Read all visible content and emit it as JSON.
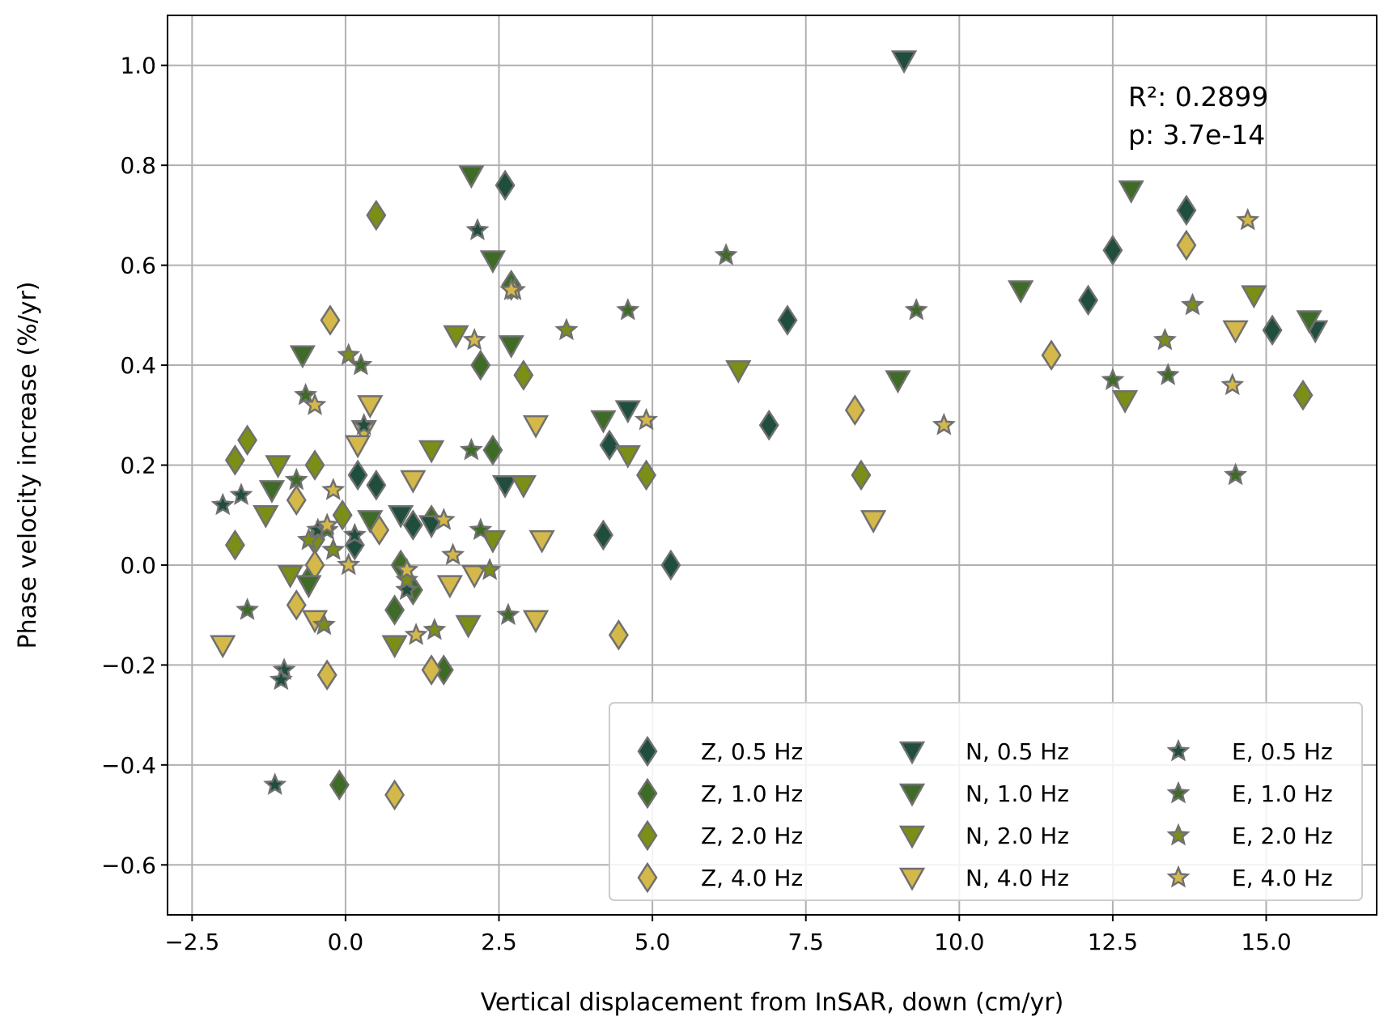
{
  "chart_data": {
    "type": "scatter",
    "xlabel": "Vertical displacement from InSAR, down (cm/yr)",
    "ylabel": "Phase velocity increase (%/yr)",
    "xlim": [
      -2.9,
      16.8
    ],
    "ylim": [
      -0.7,
      1.1
    ],
    "x_ticks": [
      -2.5,
      0.0,
      2.5,
      5.0,
      7.5,
      10.0,
      12.5,
      15.0
    ],
    "x_tick_labels": [
      "−2.5",
      "0.0",
      "2.5",
      "5.0",
      "7.5",
      "10.0",
      "12.5",
      "15.0"
    ],
    "y_ticks": [
      -0.6,
      -0.4,
      -0.2,
      0.0,
      0.2,
      0.4,
      0.6,
      0.8,
      1.0
    ],
    "y_tick_labels": [
      "−0.6",
      "−0.4",
      "−0.2",
      "0.0",
      "0.2",
      "0.4",
      "0.6",
      "0.8",
      "1.0"
    ],
    "grid": true,
    "legend_position": "lower-right",
    "annotation": [
      "R²: 0.2899",
      "p: 3.7e-14"
    ],
    "series": [
      {
        "name": "Z, 0.5 Hz",
        "marker": "diamond",
        "color": "#1f4e3d",
        "points": [
          [
            2.6,
            0.76
          ],
          [
            13.7,
            0.71
          ],
          [
            12.5,
            0.63
          ],
          [
            12.1,
            0.53
          ],
          [
            15.1,
            0.47
          ],
          [
            7.2,
            0.49
          ],
          [
            6.9,
            0.28
          ],
          [
            4.3,
            0.24
          ],
          [
            4.2,
            0.06
          ],
          [
            5.3,
            0.0
          ],
          [
            0.2,
            0.18
          ],
          [
            0.5,
            0.16
          ],
          [
            0.15,
            0.04
          ],
          [
            1.1,
            0.08
          ]
        ]
      },
      {
        "name": "Z, 1.0 Hz",
        "marker": "diamond",
        "color": "#3e6b25",
        "points": [
          [
            2.2,
            0.4
          ],
          [
            2.4,
            0.23
          ],
          [
            0.8,
            -0.09
          ],
          [
            1.6,
            -0.21
          ],
          [
            -0.1,
            -0.44
          ],
          [
            1.1,
            -0.05
          ],
          [
            2.7,
            0.56
          ],
          [
            0.9,
            0.0
          ],
          [
            -0.6,
            -0.03
          ],
          [
            1.4,
            0.09
          ]
        ]
      },
      {
        "name": "Z, 2.0 Hz",
        "marker": "diamond",
        "color": "#7b8e16",
        "points": [
          [
            0.5,
            0.7
          ],
          [
            2.9,
            0.38
          ],
          [
            4.9,
            0.18
          ],
          [
            8.4,
            0.18
          ],
          [
            15.6,
            0.34
          ],
          [
            -1.6,
            0.25
          ],
          [
            -1.8,
            0.21
          ],
          [
            -0.5,
            0.2
          ],
          [
            -0.05,
            0.1
          ],
          [
            -1.8,
            0.04
          ],
          [
            -0.5,
            0.05
          ]
        ]
      },
      {
        "name": "Z, 4.0 Hz",
        "marker": "diamond",
        "color": "#d4b84a",
        "points": [
          [
            -0.25,
            0.49
          ],
          [
            13.7,
            0.64
          ],
          [
            11.5,
            0.42
          ],
          [
            8.3,
            0.31
          ],
          [
            -0.8,
            0.13
          ],
          [
            4.45,
            -0.14
          ],
          [
            -0.8,
            -0.08
          ],
          [
            -0.3,
            -0.22
          ],
          [
            0.8,
            -0.46
          ],
          [
            1.4,
            -0.21
          ],
          [
            -0.5,
            0.0
          ],
          [
            0.55,
            0.07
          ]
        ]
      },
      {
        "name": "N, 0.5 Hz",
        "marker": "triangle-down",
        "color": "#1f4e3d",
        "points": [
          [
            9.1,
            1.01
          ],
          [
            15.8,
            0.47
          ],
          [
            4.6,
            0.31
          ],
          [
            2.6,
            0.16
          ],
          [
            1.4,
            0.08
          ],
          [
            0.9,
            0.1
          ]
        ]
      },
      {
        "name": "N, 1.0 Hz",
        "marker": "triangle-down",
        "color": "#3e6b25",
        "points": [
          [
            2.05,
            0.78
          ],
          [
            12.8,
            0.75
          ],
          [
            11.0,
            0.55
          ],
          [
            15.7,
            0.49
          ],
          [
            2.4,
            0.61
          ],
          [
            2.7,
            0.44
          ],
          [
            4.2,
            0.29
          ],
          [
            9.0,
            0.37
          ],
          [
            -0.7,
            0.42
          ],
          [
            -1.2,
            0.15
          ],
          [
            -0.6,
            -0.04
          ],
          [
            0.4,
            0.09
          ]
        ]
      },
      {
        "name": "N, 2.0 Hz",
        "marker": "triangle-down",
        "color": "#7b8e16",
        "points": [
          [
            6.4,
            0.39
          ],
          [
            14.8,
            0.54
          ],
          [
            12.7,
            0.33
          ],
          [
            1.8,
            0.46
          ],
          [
            1.4,
            0.23
          ],
          [
            4.6,
            0.22
          ],
          [
            2.9,
            0.16
          ],
          [
            -1.1,
            0.2
          ],
          [
            0.8,
            -0.16
          ],
          [
            2.0,
            -0.12
          ],
          [
            2.4,
            0.05
          ],
          [
            -1.3,
            0.1
          ],
          [
            -0.9,
            -0.02
          ]
        ]
      },
      {
        "name": "N, 4.0 Hz",
        "marker": "triangle-down",
        "color": "#d4b84a",
        "points": [
          [
            -2.0,
            -0.16
          ],
          [
            0.4,
            0.32
          ],
          [
            0.3,
            0.27
          ],
          [
            0.2,
            0.24
          ],
          [
            3.1,
            0.28
          ],
          [
            1.1,
            0.17
          ],
          [
            3.2,
            0.05
          ],
          [
            8.6,
            0.09
          ],
          [
            14.5,
            0.47
          ],
          [
            3.1,
            -0.11
          ],
          [
            -0.5,
            -0.11
          ],
          [
            1.7,
            -0.04
          ],
          [
            2.1,
            -0.02
          ]
        ]
      },
      {
        "name": "E, 0.5 Hz",
        "marker": "star",
        "color": "#1f4e3d",
        "points": [
          [
            2.15,
            0.67
          ],
          [
            0.3,
            0.28
          ],
          [
            -2.0,
            0.12
          ],
          [
            -1.7,
            0.14
          ],
          [
            1.0,
            -0.05
          ],
          [
            -1.0,
            -0.21
          ],
          [
            -1.05,
            -0.23
          ],
          [
            -1.15,
            -0.44
          ],
          [
            0.15,
            0.06
          ],
          [
            -0.45,
            0.07
          ]
        ]
      },
      {
        "name": "E, 1.0 Hz",
        "marker": "star",
        "color": "#3e6b25",
        "points": [
          [
            6.2,
            0.62
          ],
          [
            4.6,
            0.51
          ],
          [
            9.3,
            0.51
          ],
          [
            13.4,
            0.38
          ],
          [
            14.5,
            0.18
          ],
          [
            12.5,
            0.37
          ],
          [
            2.05,
            0.23
          ],
          [
            0.25,
            0.4
          ],
          [
            -0.65,
            0.34
          ],
          [
            2.65,
            -0.1
          ],
          [
            2.2,
            0.07
          ],
          [
            -1.6,
            -0.09
          ],
          [
            -0.8,
            0.17
          ],
          [
            -0.3,
            0.07
          ]
        ]
      },
      {
        "name": "E, 2.0 Hz",
        "marker": "star",
        "color": "#7b8e16",
        "points": [
          [
            3.6,
            0.47
          ],
          [
            13.8,
            0.52
          ],
          [
            13.35,
            0.45
          ],
          [
            0.05,
            0.42
          ],
          [
            1.45,
            -0.13
          ],
          [
            2.35,
            -0.01
          ],
          [
            -0.35,
            -0.12
          ],
          [
            -0.6,
            0.05
          ],
          [
            1.0,
            -0.03
          ],
          [
            -0.2,
            0.03
          ]
        ]
      },
      {
        "name": "E, 4.0 Hz",
        "marker": "star",
        "color": "#d4b84a",
        "points": [
          [
            14.7,
            0.69
          ],
          [
            2.75,
            0.55
          ],
          [
            2.1,
            0.45
          ],
          [
            4.9,
            0.29
          ],
          [
            9.75,
            0.28
          ],
          [
            14.45,
            0.36
          ],
          [
            -0.5,
            0.32
          ],
          [
            -0.2,
            0.15
          ],
          [
            1.15,
            -0.14
          ],
          [
            1.75,
            0.02
          ],
          [
            0.05,
            0.0
          ],
          [
            -0.3,
            0.08
          ],
          [
            1.6,
            0.09
          ],
          [
            1.0,
            -0.01
          ],
          [
            2.7,
            0.55
          ]
        ]
      }
    ]
  }
}
